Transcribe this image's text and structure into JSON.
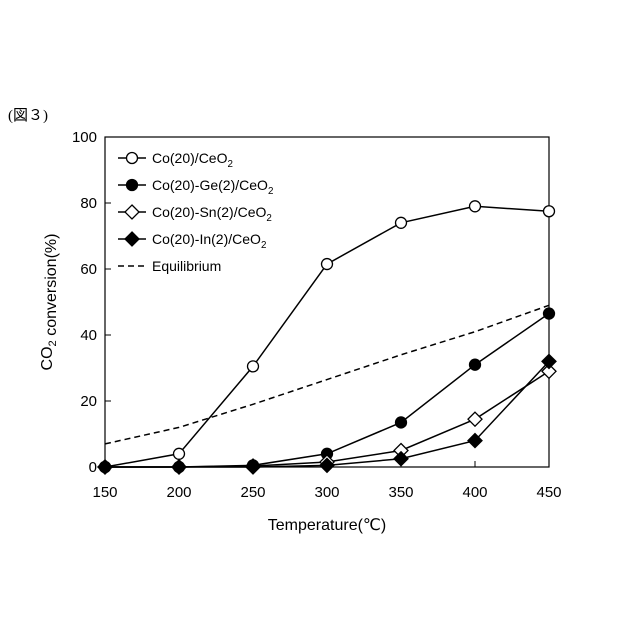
{
  "figure_label": "(図３)",
  "chart_data": {
    "type": "line",
    "xlabel": "Temperature(℃)",
    "ylabel": "CO2 conversion(%)",
    "xlim": [
      150,
      450
    ],
    "ylim": [
      0,
      100
    ],
    "x_ticks": [
      150,
      200,
      250,
      300,
      350,
      400,
      450
    ],
    "y_ticks": [
      0,
      20,
      40,
      60,
      80,
      100
    ],
    "grid": false,
    "legend_position": "top-left",
    "series": [
      {
        "name": "Co(20)/CeO2",
        "marker": "circle-open",
        "line": "solid",
        "x": [
          150,
          200,
          250,
          300,
          350,
          400,
          450
        ],
        "y": [
          0,
          4,
          30.5,
          61.5,
          74,
          79,
          77.5
        ]
      },
      {
        "name": "Co(20)-Ge(2)/CeO2",
        "marker": "circle-filled",
        "line": "solid",
        "x": [
          150,
          200,
          250,
          300,
          350,
          400,
          450
        ],
        "y": [
          0,
          0,
          0.5,
          4,
          13.5,
          31,
          46.5
        ]
      },
      {
        "name": "Co(20)-Sn(2)/CeO2",
        "marker": "diamond-open",
        "line": "solid",
        "x": [
          150,
          200,
          250,
          300,
          350,
          400,
          450
        ],
        "y": [
          0,
          0,
          0.3,
          1.5,
          5,
          14.5,
          29
        ]
      },
      {
        "name": "Co(20)-In(2)/CeO2",
        "marker": "diamond-filled",
        "line": "solid",
        "x": [
          150,
          200,
          250,
          300,
          350,
          400,
          450
        ],
        "y": [
          0,
          0,
          0,
          0.5,
          2.5,
          8,
          32
        ]
      },
      {
        "name": "Equilibrium",
        "marker": "none",
        "line": "dashed",
        "x": [
          150,
          200,
          250,
          300,
          350,
          400,
          450
        ],
        "y": [
          7,
          12,
          19,
          26.5,
          34,
          41,
          49
        ]
      }
    ]
  }
}
